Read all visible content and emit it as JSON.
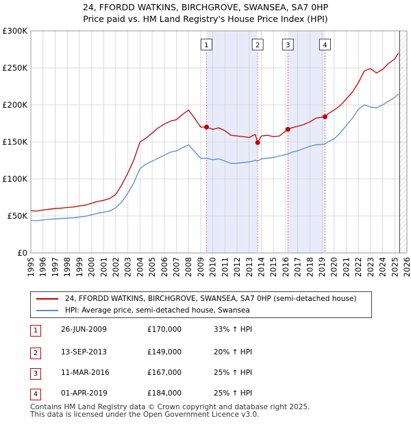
{
  "title_line1": "24, FFORDD WATKINS, BIRCHGROVE, SWANSEA, SA7 0HP",
  "title_line2": "Price paid vs. HM Land Registry's House Price Index (HPI)",
  "legend": {
    "property_label": "24, FFORDD WATKINS, BIRCHGROVE, SWANSEA, SA7 0HP (semi-detached house)",
    "hpi_label": "HPI: Average price, semi-detached house, Swansea"
  },
  "transactions": [
    {
      "num": "1",
      "date": "26-JUN-2009",
      "price": "£170,000",
      "hpi": "33% ↑ HPI"
    },
    {
      "num": "2",
      "date": "13-SEP-2013",
      "price": "£149,000",
      "hpi": "20% ↑ HPI"
    },
    {
      "num": "3",
      "date": "11-MAR-2016",
      "price": "£167,000",
      "hpi": "25% ↑ HPI"
    },
    {
      "num": "4",
      "date": "01-APR-2019",
      "price": "£184,000",
      "hpi": "25% ↑ HPI"
    }
  ],
  "footer_line1": "Contains HM Land Registry data © Crown copyright and database right 2025.",
  "footer_line2": "This data is licensed under the Open Government Licence v3.0.",
  "colors": {
    "property": "#c00000",
    "hpi": "#5a8ac8",
    "shade": "#e8ecfa",
    "grid": "#d0d0d0",
    "marker_line": "#e07070"
  },
  "chart_data": {
    "type": "line",
    "title": "24, FFORDD WATKINS, BIRCHGROVE, SWANSEA, SA7 0HP",
    "subtitle": "Price paid vs. HM Land Registry's House Price Index (HPI)",
    "xlabel": "",
    "ylabel": "",
    "xlim": [
      1995,
      2026
    ],
    "ylim": [
      0,
      300000
    ],
    "x_ticks": [
      1995,
      1996,
      1997,
      1998,
      1999,
      2000,
      2001,
      2002,
      2003,
      2004,
      2005,
      2006,
      2007,
      2008,
      2009,
      2010,
      2011,
      2012,
      2013,
      2014,
      2015,
      2016,
      2017,
      2018,
      2019,
      2020,
      2021,
      2022,
      2023,
      2024,
      2025,
      2026
    ],
    "y_ticks": [
      0,
      50000,
      100000,
      150000,
      200000,
      250000,
      300000
    ],
    "y_tick_labels": [
      "£0",
      "£50K",
      "£100K",
      "£150K",
      "£200K",
      "£250K",
      "£300K"
    ],
    "grid": true,
    "shaded_ranges": [
      [
        2009.48,
        2013.7
      ],
      [
        2016.19,
        2019.25
      ]
    ],
    "data_end_marker": 2025.4,
    "series": [
      {
        "name": "24, FFORDD WATKINS, BIRCHGROVE, SWANSEA, SA7 0HP (semi-detached house)",
        "x": [
          1995.0,
          1995.5,
          1996.0,
          1996.5,
          1997.0,
          1997.5,
          1998.0,
          1998.5,
          1999.0,
          1999.5,
          2000.0,
          2000.5,
          2001.0,
          2001.5,
          2002.0,
          2002.5,
          2003.0,
          2003.5,
          2004.0,
          2004.5,
          2005.0,
          2005.5,
          2006.0,
          2006.5,
          2007.0,
          2007.5,
          2008.0,
          2008.5,
          2009.0,
          2009.48,
          2010.0,
          2010.5,
          2011.0,
          2011.5,
          2012.0,
          2012.5,
          2013.0,
          2013.5,
          2013.7,
          2014.0,
          2014.5,
          2015.0,
          2015.5,
          2016.19,
          2016.5,
          2017.0,
          2017.5,
          2018.0,
          2018.5,
          2019.25,
          2019.5,
          2020.0,
          2020.5,
          2021.0,
          2021.5,
          2022.0,
          2022.5,
          2023.0,
          2023.5,
          2024.0,
          2024.5,
          2025.0,
          2025.3
        ],
        "values": [
          57000,
          56500,
          58000,
          59000,
          60000,
          60500,
          61500,
          62000,
          63500,
          64500,
          67000,
          69500,
          71000,
          73500,
          79000,
          92000,
          108000,
          126000,
          150000,
          155000,
          162000,
          169000,
          174000,
          178000,
          180000,
          187000,
          193000,
          182000,
          170000,
          170000,
          167000,
          169000,
          165000,
          159000,
          158000,
          157000,
          156000,
          160000,
          149000,
          158000,
          159000,
          157000,
          158000,
          167000,
          169000,
          171000,
          173500,
          177000,
          182000,
          184000,
          188000,
          193000,
          199000,
          208000,
          217000,
          230000,
          246000,
          249000,
          243000,
          248000,
          256000,
          262000,
          270000
        ]
      },
      {
        "name": "HPI: Average price, semi-detached house, Swansea",
        "x": [
          1995.0,
          1995.5,
          1996.0,
          1996.5,
          1997.0,
          1997.5,
          1998.0,
          1998.5,
          1999.0,
          1999.5,
          2000.0,
          2000.5,
          2001.0,
          2001.5,
          2002.0,
          2002.5,
          2003.0,
          2003.5,
          2004.0,
          2004.5,
          2005.0,
          2005.5,
          2006.0,
          2006.5,
          2007.0,
          2007.5,
          2008.0,
          2008.5,
          2009.0,
          2009.48,
          2010.0,
          2010.5,
          2011.0,
          2011.5,
          2012.0,
          2012.5,
          2013.0,
          2013.5,
          2013.7,
          2014.0,
          2014.5,
          2015.0,
          2015.5,
          2016.19,
          2016.5,
          2017.0,
          2017.5,
          2018.0,
          2018.5,
          2019.25,
          2019.5,
          2020.0,
          2020.5,
          2021.0,
          2021.5,
          2022.0,
          2022.5,
          2023.0,
          2023.5,
          2024.0,
          2024.5,
          2025.0,
          2025.3
        ],
        "values": [
          44000,
          43500,
          44500,
          45500,
          46000,
          46500,
          47000,
          47500,
          48500,
          49500,
          51500,
          53500,
          55000,
          56500,
          61000,
          69000,
          81000,
          95000,
          114000,
          120000,
          124000,
          128000,
          132000,
          136000,
          138000,
          142000,
          146000,
          137000,
          128000,
          127800,
          126000,
          127000,
          124000,
          121000,
          121000,
          122000,
          123000,
          125000,
          124200,
          127000,
          128000,
          129000,
          131000,
          133600,
          136000,
          138000,
          141000,
          144000,
          146000,
          147200,
          150000,
          154000,
          162000,
          172000,
          182000,
          194000,
          200000,
          197000,
          196000,
          200000,
          205000,
          210000,
          215000
        ]
      }
    ],
    "transactions": [
      {
        "label": "1",
        "x": 2009.48,
        "value": 170000
      },
      {
        "label": "2",
        "x": 2013.7,
        "value": 149000
      },
      {
        "label": "3",
        "x": 2016.19,
        "value": 167000
      },
      {
        "label": "4",
        "x": 2019.25,
        "value": 184000
      }
    ]
  }
}
